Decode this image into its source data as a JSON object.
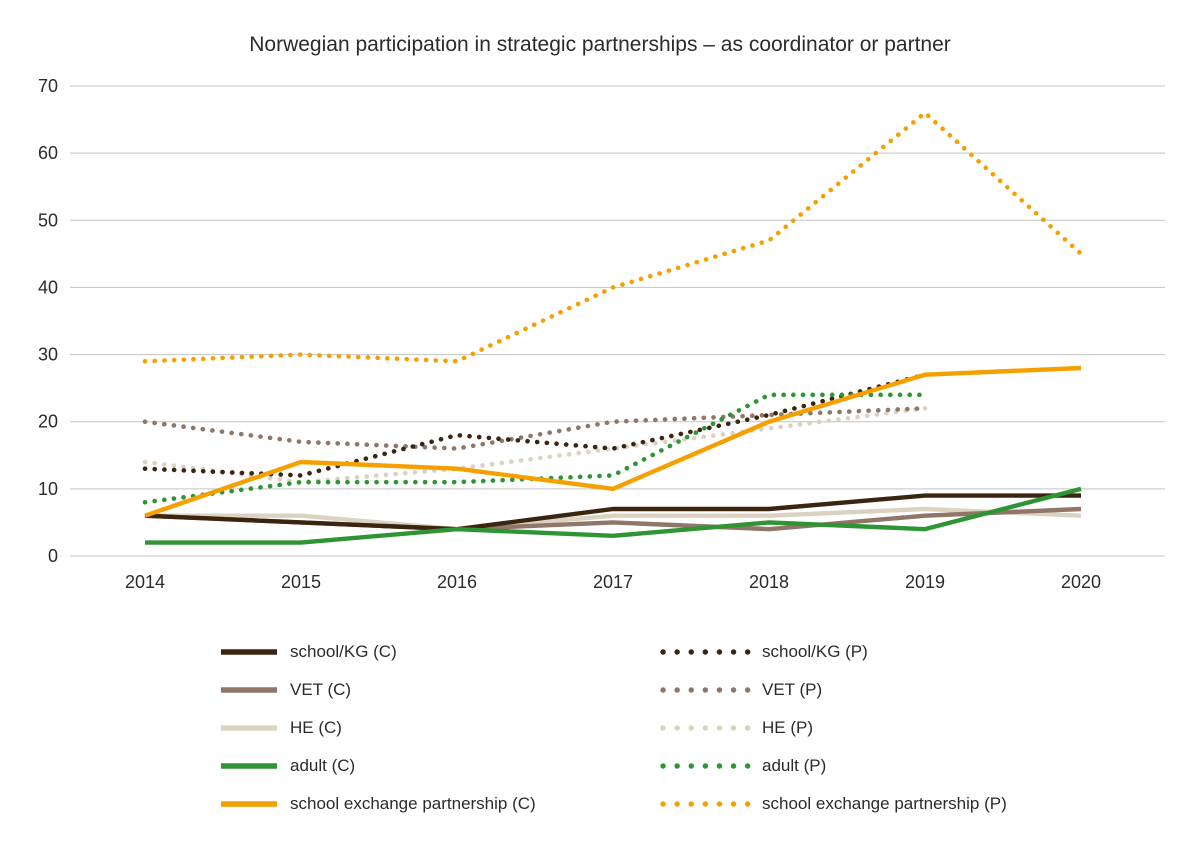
{
  "title": "Norwegian participation in strategic partnerships – as coordinator or partner",
  "chart_data": {
    "type": "line",
    "title": "Norwegian participation in strategic partnerships – as coordinator or partner",
    "x": [
      "2014",
      "2015",
      "2016",
      "2017",
      "2018",
      "2019",
      "2020"
    ],
    "xlabel": "",
    "ylabel": "",
    "ylim": [
      0,
      70
    ],
    "yticks": [
      0,
      10,
      20,
      30,
      40,
      50,
      60,
      70
    ],
    "grid": true,
    "grid_color": "#c3c3c3",
    "tick_color": "#2b2b2b",
    "legend_position": "bottom",
    "series": [
      {
        "name": "school/KG (C)",
        "color": "#3b2410",
        "style": "solid",
        "values": [
          6,
          5,
          4,
          7,
          7,
          9,
          9
        ]
      },
      {
        "name": "VET (C)",
        "color": "#8f7668",
        "style": "solid",
        "values": [
          6,
          5,
          4,
          5,
          4,
          6,
          7
        ]
      },
      {
        "name": "HE (C)",
        "color": "#dbd2c1",
        "style": "solid",
        "values": [
          6,
          6,
          4,
          6,
          6,
          7,
          6
        ]
      },
      {
        "name": "adult (C)",
        "color": "#2e9434",
        "style": "solid",
        "values": [
          2,
          2,
          4,
          3,
          5,
          4,
          10
        ]
      },
      {
        "name": "school exchange partnership (C)",
        "color": "#f5a000",
        "style": "solid",
        "values": [
          6,
          14,
          13,
          10,
          20,
          27,
          28
        ]
      },
      {
        "name": "school/KG (P)",
        "color": "#3b2410",
        "style": "dotted",
        "values": [
          13,
          12,
          18,
          16,
          21,
          27,
          null
        ]
      },
      {
        "name": "VET (P)",
        "color": "#8f7668",
        "style": "dotted",
        "values": [
          20,
          17,
          16,
          20,
          21,
          22,
          null
        ]
      },
      {
        "name": "HE (P)",
        "color": "#dbd2c1",
        "style": "dotted",
        "values": [
          14,
          11,
          13,
          16,
          19,
          22,
          null
        ]
      },
      {
        "name": "adult (P)",
        "color": "#2e9434",
        "style": "dotted",
        "values": [
          8,
          11,
          11,
          12,
          24,
          24,
          null
        ]
      },
      {
        "name": "school exchange partnership (P)",
        "color": "#f5a000",
        "style": "dotted",
        "values": [
          29,
          30,
          29,
          40,
          47,
          66,
          45
        ]
      }
    ]
  }
}
